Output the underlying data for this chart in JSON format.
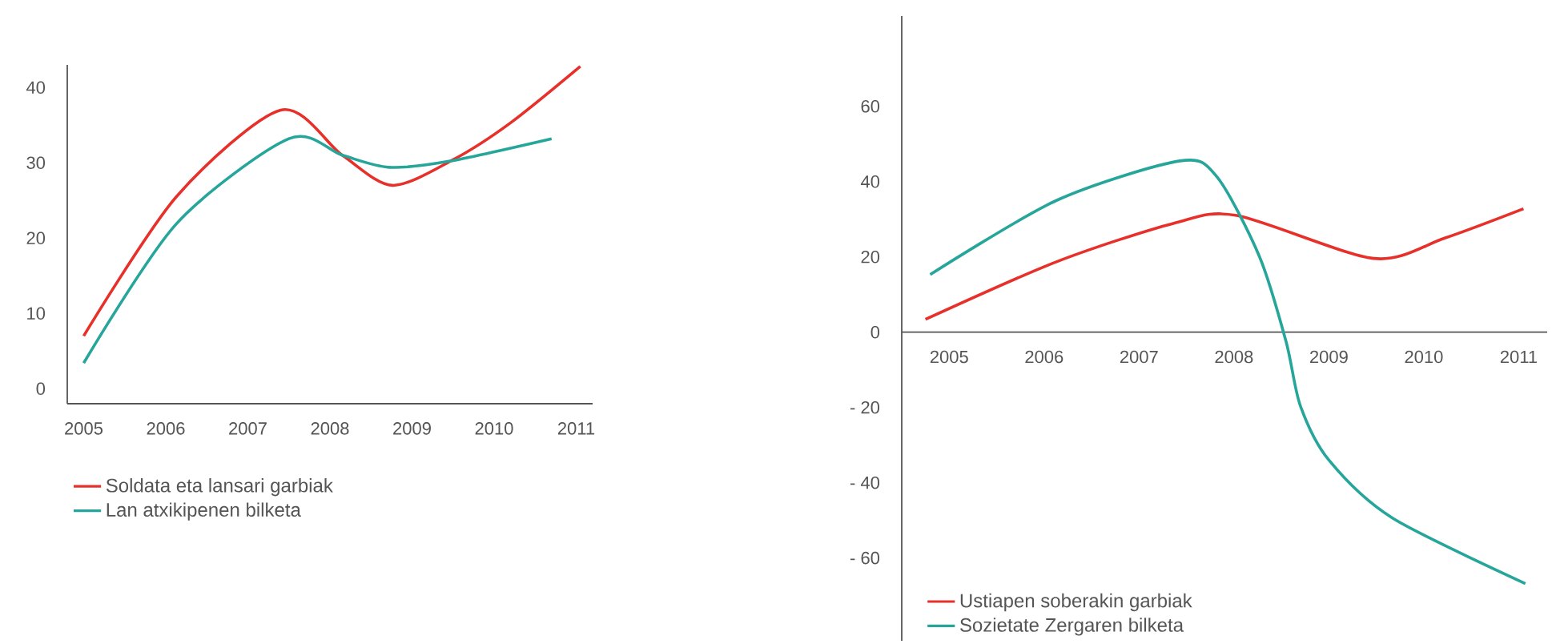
{
  "chart_data": [
    {
      "type": "line",
      "xlim": [
        2004.8,
        2011.2
      ],
      "ylim": [
        -2,
        43
      ],
      "xticks": [
        2005,
        2006,
        2007,
        2008,
        2009,
        2010,
        2011
      ],
      "yticks": [
        0,
        10,
        20,
        30,
        40
      ],
      "legend": "bottom",
      "series": [
        {
          "name": "Soldata eta lansari garbiak",
          "color": "#e8302a",
          "x": [
            2005.0,
            2006.13,
            2007.4,
            2008.15,
            2008.76,
            2009.5,
            2010.2,
            2011.05
          ],
          "values": [
            7.0,
            25.5,
            37.0,
            31.0,
            27.0,
            30.4,
            35.3,
            42.8
          ]
        },
        {
          "name": "Lan atxikipenen bilketa",
          "color": "#26a69a",
          "x": [
            2005.0,
            2006.13,
            2007.5,
            2008.15,
            2008.72,
            2009.45,
            2010.7
          ],
          "values": [
            3.4,
            21.9,
            33.2,
            31.0,
            29.4,
            30.2,
            33.2
          ]
        }
      ]
    },
    {
      "type": "line",
      "xlim": [
        2004.5,
        2011.3
      ],
      "ylim": [
        -82,
        84
      ],
      "xticks": [
        2005,
        2006,
        2007,
        2008,
        2009,
        2010,
        2011
      ],
      "yticks": [
        {
          "value": -60,
          "label": "- 60"
        },
        {
          "value": -40,
          "label": "- 40"
        },
        {
          "value": -20,
          "label": "- 20"
        },
        0,
        20,
        40,
        60
      ],
      "legend": "bottom left",
      "series": [
        {
          "name": "Ustiapen soberakin garbiak",
          "color": "#e8302a",
          "x": [
            2004.75,
            2006.13,
            2007.36,
            2008.03,
            2009.47,
            2010.22,
            2011.05
          ],
          "values": [
            3.4,
            18.7,
            28.9,
            31.0,
            19.6,
            25.0,
            32.8
          ]
        },
        {
          "name": "Sozietate Zergaren bilketa",
          "color": "#26a69a",
          "x": [
            2004.8,
            2006.13,
            2007.43,
            2007.82,
            2008.27,
            2008.55,
            2008.7,
            2009.0,
            2009.67,
            2011.07
          ],
          "values": [
            15.3,
            35.0,
            45.5,
            41.3,
            20.0,
            -2.6,
            -19.6,
            -34.0,
            -49.4,
            -66.8
          ]
        }
      ]
    }
  ]
}
